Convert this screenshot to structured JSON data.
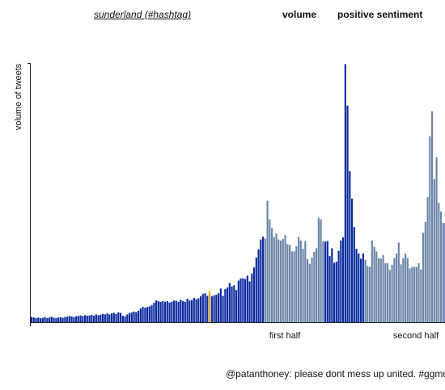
{
  "header": {
    "hashtag_link": "sunderland (#hashtag)",
    "tab_volume": "volume",
    "tab_sentiment": "positive sentiment"
  },
  "colors": {
    "bar_dark": "#0a2a9e",
    "bar_light": "#6a86a8",
    "highlight": "#f0a818",
    "axis": "#222222"
  },
  "chart_data": {
    "type": "bar",
    "ylabel": "volume of tweets",
    "period_labels": [
      "first half",
      "second half"
    ],
    "light_ranges": [
      [
        105,
        131
      ],
      [
        150,
        185
      ]
    ],
    "highlight_index": 80,
    "ymax": 100,
    "values": [
      2,
      1.8,
      1.6,
      1.8,
      1.5,
      1.7,
      2,
      1.6,
      1.8,
      2.1,
      1.7,
      1.6,
      1.8,
      1.9,
      1.7,
      2,
      2.1,
      2.4,
      2.2,
      2,
      2.3,
      2.4,
      2.6,
      2.4,
      2.7,
      2.5,
      2.6,
      2.8,
      2.5,
      3,
      2.7,
      2.9,
      3.2,
      3,
      3.4,
      3,
      3.4,
      3.6,
      3.2,
      3.8,
      3.6,
      2.5,
      2.2,
      3,
      3.5,
      3.7,
      4.1,
      3.9,
      4.4,
      5.3,
      5.9,
      5.6,
      5.9,
      6.1,
      6.6,
      7.5,
      8.4,
      8.1,
      7.8,
      8.2,
      7.9,
      8.2,
      7.6,
      7.9,
      8.4,
      8.2,
      7.8,
      8.7,
      8.2,
      7.9,
      9.1,
      8.4,
      8.6,
      9.4,
      8.9,
      9.2,
      10,
      11,
      11.2,
      10.2,
      12,
      10,
      10.4,
      10.6,
      11.2,
      13,
      10.2,
      12.8,
      13.4,
      15.2,
      13.8,
      14.3,
      12.4,
      16.1,
      16.9,
      17,
      16.7,
      18,
      15.8,
      18.8,
      21.2,
      25,
      28.2,
      32,
      33.1,
      32.4,
      47,
      39.8,
      36.4,
      33,
      34.3,
      32,
      31.6,
      32.2,
      33.7,
      30.2,
      30,
      27.4,
      27.4,
      29.4,
      33,
      31.6,
      28.4,
      31.4,
      24.4,
      22.6,
      25,
      27.2,
      28.6,
      40.4,
      39.8,
      31.4,
      31.2,
      31.4,
      25.6,
      28.6,
      23,
      23.4,
      27.6,
      31.6,
      32.8,
      99.9,
      83.8,
      58.4,
      47.8,
      36.8,
      28.4,
      26.6,
      24.6,
      26.6,
      24.2,
      21.8,
      21.4,
      31.6,
      29.2,
      27.4,
      24.8,
      24.6,
      26,
      22.8,
      22.8,
      20.2,
      22.2,
      24.8,
      26.6,
      30.8,
      22.4,
      24.8,
      26.6,
      24.8,
      20.8,
      21.4,
      21.4,
      21.4,
      22.8,
      20.4,
      34.6,
      38.8,
      48.4,
      72,
      81.6,
      55.4,
      63.8,
      46.2,
      42.8,
      38.4,
      38.4,
      33.8,
      31,
      30.2,
      29.8,
      27.8,
      24.6,
      26.6,
      23.6,
      21.8,
      19,
      18.2,
      18,
      21.6,
      21,
      21,
      21.6,
      21.8,
      23.6,
      21.6,
      23.6,
      20.8,
      24.2,
      22.6,
      24.2,
      21
    ]
  },
  "tweet": {
    "text": "@patanthoney: please dont mess up united. #ggmu"
  }
}
